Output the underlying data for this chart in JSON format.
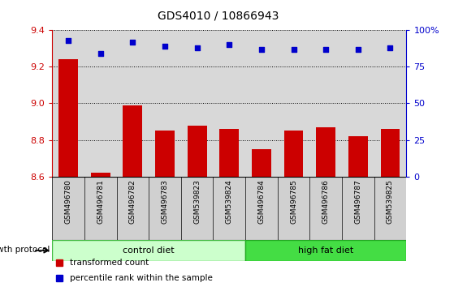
{
  "title": "GDS4010 / 10866943",
  "samples": [
    "GSM496780",
    "GSM496781",
    "GSM496782",
    "GSM496783",
    "GSM539823",
    "GSM539824",
    "GSM496784",
    "GSM496785",
    "GSM496786",
    "GSM496787",
    "GSM539825"
  ],
  "bar_values": [
    9.24,
    8.62,
    8.99,
    8.85,
    8.88,
    8.86,
    8.75,
    8.85,
    8.87,
    8.82,
    8.86
  ],
  "dot_values": [
    93,
    84,
    92,
    89,
    88,
    90,
    87,
    87,
    87,
    87,
    88
  ],
  "ylim_left": [
    8.6,
    9.4
  ],
  "ylim_right": [
    0,
    100
  ],
  "yticks_left": [
    8.6,
    8.8,
    9.0,
    9.2,
    9.4
  ],
  "yticks_right": [
    0,
    25,
    50,
    75,
    100
  ],
  "ytick_labels_right": [
    "0",
    "25",
    "50",
    "75",
    "100%"
  ],
  "bar_color": "#cc0000",
  "dot_color": "#0000cc",
  "control_diet_color_light": "#ccffcc",
  "control_diet_color_dark": "#44dd44",
  "high_fat_color_light": "#55ee55",
  "high_fat_color_dark": "#22bb22",
  "control_diet_label": "control diet",
  "high_fat_label": "high fat diet",
  "n_control": 6,
  "group_label": "growth protocol",
  "legend_red_label": "transformed count",
  "legend_blue_label": "percentile rank within the sample",
  "bar_bottom": 8.6,
  "plot_bg_color": "#d8d8d8",
  "label_bg_color": "#d0d0d0"
}
